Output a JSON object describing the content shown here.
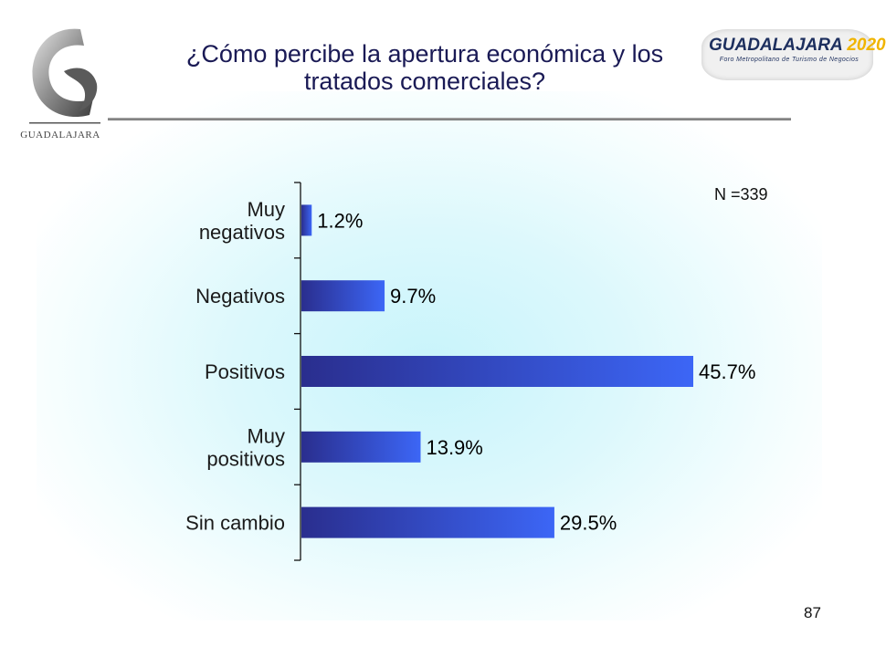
{
  "slide": {
    "title": "¿Cómo percibe la apertura económica y los tratados comerciales?",
    "page_number": "87",
    "sample_note": "N =339"
  },
  "logos": {
    "left_text": "GUADALAJARA",
    "right_name": "GUADALAJARA",
    "right_year": "2020",
    "right_subtitle": "Foro Metropolitano de Turismo de Negocios"
  },
  "colors": {
    "bar_dark": "#2a2e8e",
    "bar_light": "#3c66f6",
    "title": "#1a1a55"
  },
  "chart_data": {
    "type": "bar",
    "orientation": "horizontal",
    "title": "¿Cómo percibe la apertura económica y los tratados comerciales?",
    "categories": [
      [
        "Muy",
        "negativos"
      ],
      [
        "Negativos"
      ],
      [
        "Positivos"
      ],
      [
        "Muy",
        "positivos"
      ],
      [
        "Sin cambio"
      ]
    ],
    "values": [
      1.2,
      9.7,
      45.7,
      13.9,
      29.5
    ],
    "value_labels": [
      "1.2%",
      "9.7%",
      "45.7%",
      "13.9%",
      "29.5%"
    ],
    "unit": "%",
    "grid": false,
    "legend": "none"
  }
}
